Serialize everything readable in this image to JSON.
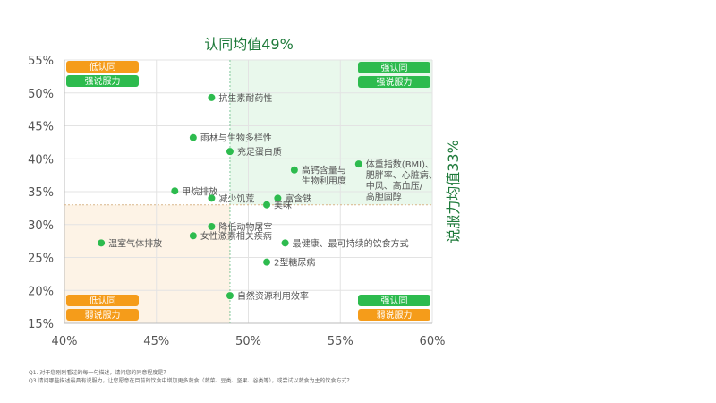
{
  "chart_data": {
    "type": "scatter",
    "title": "认同均值49%",
    "right_label": "说服力均值33%",
    "xlim": [
      40,
      60
    ],
    "ylim": [
      15,
      55
    ],
    "x_ticks": [
      "40%",
      "45%",
      "50%",
      "55%",
      "60%"
    ],
    "y_ticks": [
      "15%",
      "20%",
      "25%",
      "30%",
      "35%",
      "40%",
      "45%",
      "50%",
      "55%"
    ],
    "x_mean": 49,
    "y_mean": 33,
    "grid": true,
    "point_color": "#2dbb4e",
    "points": [
      {
        "label": [
          "抗生素耐药性"
        ],
        "x": 48,
        "y": 49.3
      },
      {
        "label": [
          "雨林与生物多样性"
        ],
        "x": 47,
        "y": 43.2
      },
      {
        "label": [
          "充足蛋白质"
        ],
        "x": 49,
        "y": 41.1
      },
      {
        "label": [
          "高钙含量与",
          "生物利用度"
        ],
        "x": 52.5,
        "y": 38.3
      },
      {
        "label": [
          "体重指数(BMI)、",
          "肥胖率、心脏病、",
          "中风、高血压/",
          "高胆固醇"
        ],
        "x": 56,
        "y": 39.2
      },
      {
        "label": [
          "甲烷排放"
        ],
        "x": 46,
        "y": 35.1
      },
      {
        "label": [
          "减少饥荒"
        ],
        "x": 48,
        "y": 34
      },
      {
        "label": [
          "富含铁"
        ],
        "x": 51.6,
        "y": 34
      },
      {
        "label": [
          "美味"
        ],
        "x": 51,
        "y": 33
      },
      {
        "label": [
          "降低动物屠宰"
        ],
        "x": 48,
        "y": 29.7
      },
      {
        "label": [
          "女性激素相关疾病"
        ],
        "x": 47,
        "y": 28.3
      },
      {
        "label": [
          "温室气体排放"
        ],
        "x": 42,
        "y": 27.2
      },
      {
        "label": [
          "最健康、最可持续的饮食方式"
        ],
        "x": 52,
        "y": 27.2
      },
      {
        "label": [
          "2型糖尿病"
        ],
        "x": 51,
        "y": 24.3
      },
      {
        "label": [
          "自然资源利用效率"
        ],
        "x": 49,
        "y": 19.2
      }
    ],
    "quadrant_badges": {
      "top_left": [
        {
          "text": "低认同",
          "color": "#f59c1a"
        },
        {
          "text": "强说服力",
          "color": "#2dbb4e"
        }
      ],
      "top_right": [
        {
          "text": "强认同",
          "color": "#2dbb4e"
        },
        {
          "text": "强说服力",
          "color": "#2dbb4e"
        }
      ],
      "bottom_left": [
        {
          "text": "低认同",
          "color": "#f59c1a"
        },
        {
          "text": "弱说服力",
          "color": "#f59c1a"
        }
      ],
      "bottom_right": [
        {
          "text": "强认同",
          "color": "#2dbb4e"
        },
        {
          "text": "弱说服力",
          "color": "#f59c1a"
        }
      ]
    }
  },
  "notes": [
    "Q1. 对于您刚刚看过的每一句描述，请问您的同意程度是？",
    "Q3.请问哪些描述最具有说服力，让您愿意在目前的饮食中增加更多蔬食（蔬菜、豆类、坚果、谷类等），或尝试以蔬食为主的饮食方式？"
  ]
}
